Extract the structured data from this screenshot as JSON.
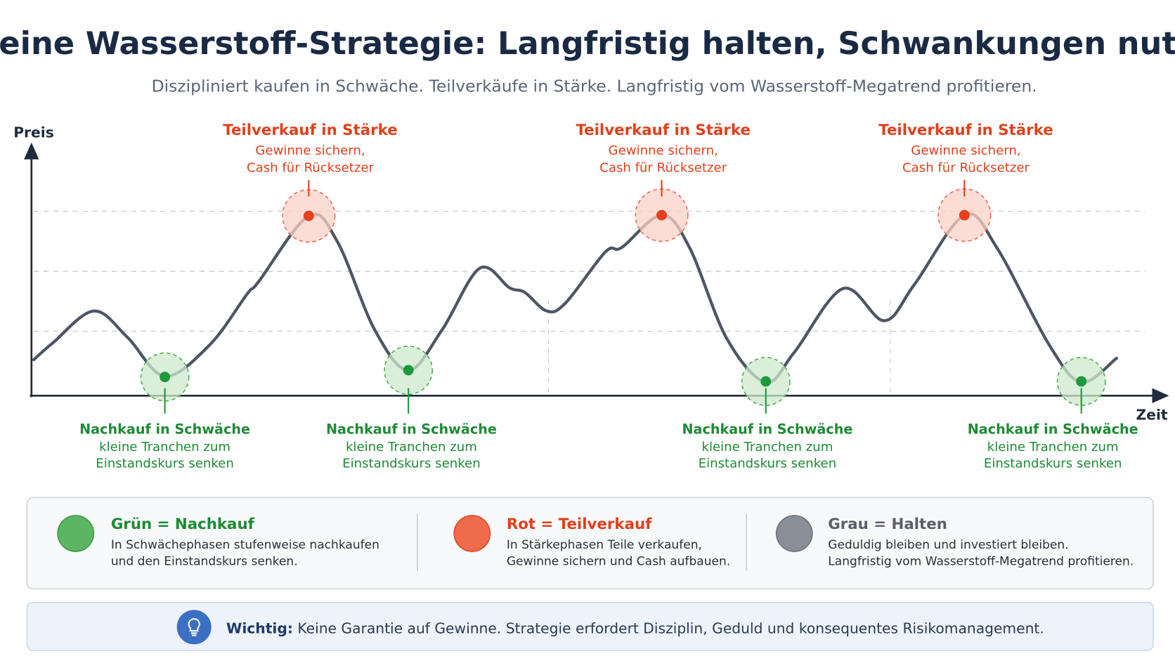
{
  "header": {
    "title": "Meine Wasserstoff-Strategie: Langfristig halten, Schwankungen nutzen",
    "subtitle": "Diszipliniert kaufen in Schwäche. Teilverkäufe in Stärke. Langfristig vom Wasserstoff-Megatrend profitieren."
  },
  "axes": {
    "y_label": "Preis",
    "x_label": "Zeit"
  },
  "sell_points": [
    {
      "title": "Teilverkauf in Stärke",
      "lines": [
        "Gewinne sichern,",
        "Cash für Rücksetzer"
      ]
    },
    {
      "title": "Teilverkauf in Stärke",
      "lines": [
        "Gewinne sichern,",
        "Cash für Rücksetzer"
      ]
    },
    {
      "title": "Teilverkauf in Stärke",
      "lines": [
        "Gewinne sichern,",
        "Cash für Rücksetzer"
      ]
    }
  ],
  "buy_points": [
    {
      "title": "Nachkauf in Schwäche",
      "lines": [
        "kleine Tranchen zum",
        "Einstandskurs senken"
      ]
    },
    {
      "title": "Nachkauf in Schwäche",
      "lines": [
        "kleine Tranchen zum",
        "Einstandskurs senken"
      ]
    },
    {
      "title": "Nachkauf in Schwäche",
      "lines": [
        "kleine Tranchen zum",
        "Einstandskurs senken"
      ]
    },
    {
      "title": "Nachkauf in Schwäche",
      "lines": [
        "kleine Tranchen zum",
        "Einstandskurs senken"
      ]
    }
  ],
  "legend": [
    {
      "title": "Grün = Nachkauf",
      "lines": [
        "In Schwächephasen stufenweise nachkaufen",
        "und den Einstandskurs senken."
      ]
    },
    {
      "title": "Rot = Teilverkauf",
      "lines": [
        "In Stärkephasen Teile verkaufen,",
        "Gewinne sichern und Cash aufbauen."
      ]
    },
    {
      "title": "Grau = Halten",
      "lines": [
        "Geduldig bleiben und investiert bleiben.",
        "Langfristig vom Wasserstoff-Megatrend profitieren."
      ]
    }
  ],
  "note": {
    "label": "Wichtig:",
    "text": "Keine Garantie auf Gewinne. Strategie erfordert Disziplin, Geduld und konsequentes Risikomanagement."
  }
}
